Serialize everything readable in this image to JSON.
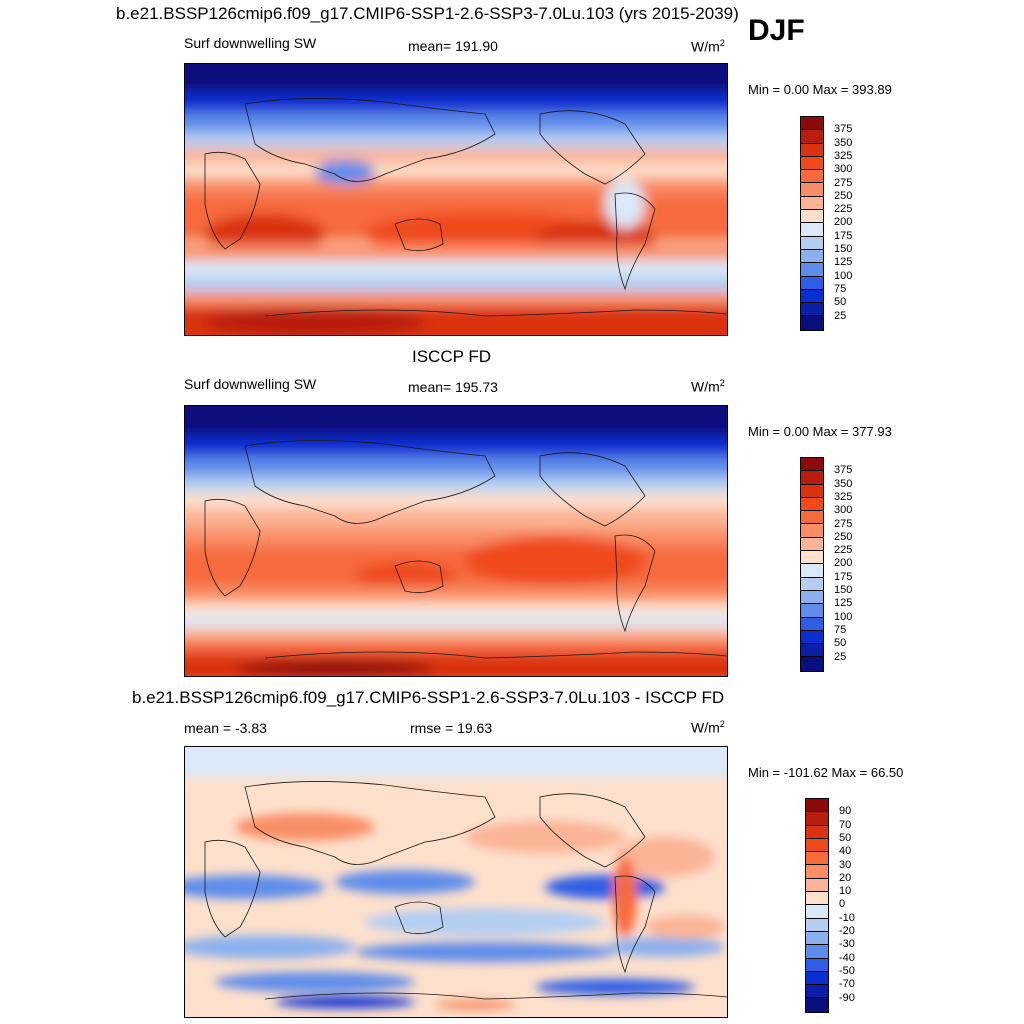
{
  "season": "DJF",
  "panels": [
    {
      "title": "b.e21.BSSP126cmip6.f09_g17.CMIP6-SSP1-2.6-SSP3-7.0Lu.103 (yrs 2015-2039)",
      "left_label": "Surf downwelling SW",
      "center_label": "mean= 191.90",
      "units": "W/m",
      "units_sup": "2",
      "minmax_label": "Min =   0.00 Max = 393.89",
      "colorbar": {
        "labels": [
          "375",
          "350",
          "325",
          "300",
          "275",
          "250",
          "225",
          "200",
          "175",
          "150",
          "125",
          "100",
          "75",
          "50",
          "25"
        ],
        "colors": [
          "#8c0a0a",
          "#b81d0e",
          "#d9330f",
          "#ef4a1a",
          "#f66a3c",
          "#f98e66",
          "#fbb496",
          "#fde0cc",
          "#dbe8f7",
          "#b4cef2",
          "#8bb0ee",
          "#5e8cea",
          "#2f5de6",
          "#0a2fd1",
          "#0c1fa8",
          "#08107e"
        ]
      }
    },
    {
      "title": "ISCCP FD",
      "left_label": "Surf downwelling SW",
      "center_label": "mean= 195.73",
      "units": "W/m",
      "units_sup": "2",
      "minmax_label": "Min =   0.00 Max = 377.93",
      "colorbar": {
        "labels": [
          "375",
          "350",
          "325",
          "300",
          "275",
          "250",
          "225",
          "200",
          "175",
          "150",
          "125",
          "100",
          "75",
          "50",
          "25"
        ],
        "colors": [
          "#8c0a0a",
          "#b81d0e",
          "#d9330f",
          "#ef4a1a",
          "#f66a3c",
          "#f98e66",
          "#fbb496",
          "#fde0cc",
          "#dbe8f7",
          "#b4cef2",
          "#8bb0ee",
          "#5e8cea",
          "#2f5de6",
          "#0a2fd1",
          "#0c1fa8",
          "#08107e"
        ]
      }
    },
    {
      "title": "b.e21.BSSP126cmip6.f09_g17.CMIP6-SSP1-2.6-SSP3-7.0Lu.103 - ISCCP FD",
      "left_label": "mean =  -3.83",
      "center_label": "rmse =  19.63",
      "units": "W/m",
      "units_sup": "2",
      "minmax_label": "Min = -101.62 Max =  66.50",
      "colorbar": {
        "labels": [
          "90",
          "70",
          "50",
          "40",
          "30",
          "20",
          "10",
          "0",
          "-10",
          "-20",
          "-30",
          "-40",
          "-50",
          "-70",
          "-90"
        ],
        "colors": [
          "#8c0a0a",
          "#b81d0e",
          "#d9330f",
          "#ef4a1a",
          "#f66a3c",
          "#f98e66",
          "#fbb496",
          "#fde0cc",
          "#dbe8f7",
          "#b4cef2",
          "#8bb0ee",
          "#5e8cea",
          "#2f5de6",
          "#0a2fd1",
          "#0c1fa8",
          "#08107e"
        ]
      }
    }
  ]
}
